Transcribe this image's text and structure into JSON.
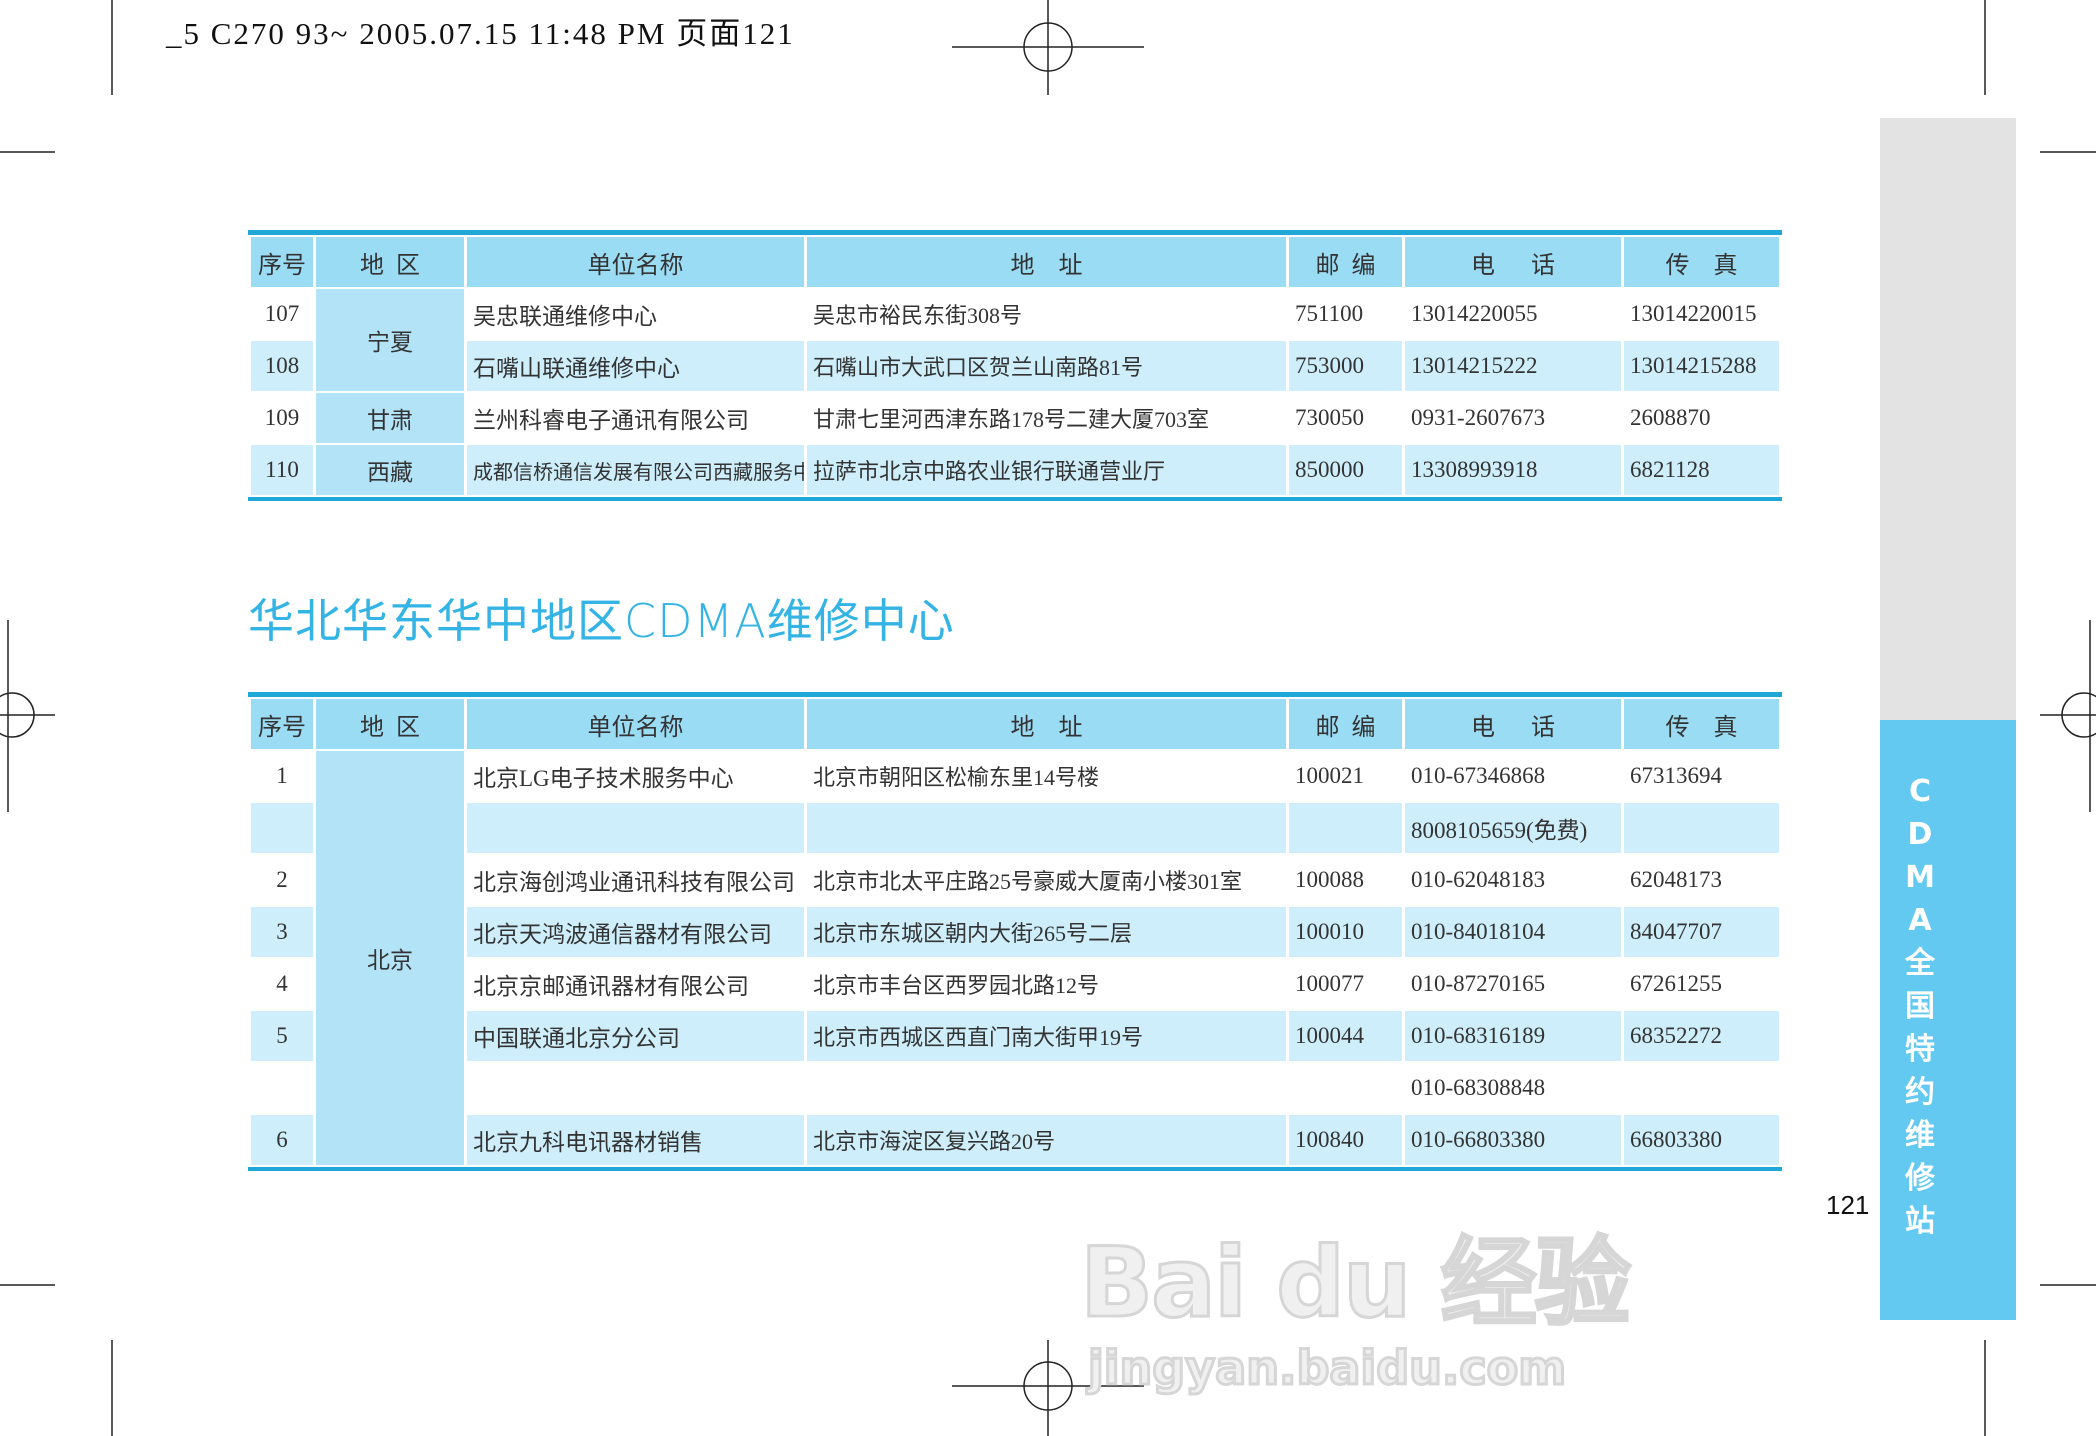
{
  "slug": "_5 C270 93~  2005.07.15 11:48 PM 页面121",
  "colors": {
    "accent": "#1fa7d8",
    "header_bg": "#9bdcf5",
    "region_bg": "#b3e3f7",
    "row_shade": "#cdeefa",
    "sidebar_blue": "#63c9f1",
    "sidebar_gray": "#e3e3e3",
    "heading": "#33b4e4"
  },
  "headers": [
    "序号",
    "地  区",
    "单位名称",
    "地    址",
    "邮  编",
    "电      话",
    "传    真"
  ],
  "table1": {
    "groups": [
      {
        "region": "宁夏",
        "rows": [
          {
            "no": "107",
            "name": "吴忠联通维修中心",
            "address": "吴忠市裕民东街308号",
            "zip": "751100",
            "phone": "13014220055",
            "fax": "13014220015"
          },
          {
            "no": "108",
            "name": "石嘴山联通维修中心",
            "address": "石嘴山市大武口区贺兰山南路81号",
            "zip": "753000",
            "phone": "13014215222",
            "fax": "13014215288"
          }
        ]
      },
      {
        "region": "甘肃",
        "rows": [
          {
            "no": "109",
            "name": "兰州科睿电子通讯有限公司",
            "address": "甘肃七里河西津东路178号二建大厦703室",
            "zip": "730050",
            "phone": "0931-2607673",
            "fax": "2608870"
          }
        ]
      },
      {
        "region": "西藏",
        "rows": [
          {
            "no": "110",
            "name": "成都信桥通信发展有限公司西藏服务中心",
            "address": "拉萨市北京中路农业银行联通营业厅",
            "zip": "850000",
            "phone": "13308993918",
            "fax": "6821128"
          }
        ]
      }
    ]
  },
  "section_title": "华北华东华中地区CDMA维修中心",
  "table2": {
    "groups": [
      {
        "region": "北京",
        "rows": [
          {
            "no": "1",
            "name": "北京LG电子技术服务中心",
            "address": "北京市朝阳区松榆东里14号楼",
            "zip": "100021",
            "phone": "010-67346868",
            "fax": "67313694"
          },
          {
            "no": "",
            "name": "",
            "address": "",
            "zip": "",
            "phone": "8008105659(免费)",
            "fax": ""
          },
          {
            "no": "2",
            "name": "北京海创鸿业通讯科技有限公司",
            "address": "北京市北太平庄路25号豪威大厦南小楼301室",
            "zip": "100088",
            "phone": "010-62048183",
            "fax": "62048173"
          },
          {
            "no": "3",
            "name": "北京天鸿波通信器材有限公司",
            "address": "北京市东城区朝内大街265号二层",
            "zip": "100010",
            "phone": "010-84018104",
            "fax": "84047707"
          },
          {
            "no": "4",
            "name": "北京京邮通讯器材有限公司",
            "address": "北京市丰台区西罗园北路12号",
            "zip": "100077",
            "phone": "010-87270165",
            "fax": "67261255"
          },
          {
            "no": "5",
            "name": "中国联通北京分公司",
            "address": "北京市西城区西直门南大街甲19号",
            "zip": "100044",
            "phone": "010-68316189",
            "fax": "68352272"
          },
          {
            "no": "",
            "name": "",
            "address": "",
            "zip": "",
            "phone": "010-68308848",
            "fax": ""
          },
          {
            "no": "6",
            "name": "北京九科电讯器材销售",
            "address": "北京市海淀区复兴路20号",
            "zip": "100840",
            "phone": "010-66803380",
            "fax": "66803380"
          }
        ]
      }
    ]
  },
  "sidebar": {
    "chars": [
      "C",
      "D",
      "M",
      "A",
      "全",
      "国",
      "特",
      "约",
      "维",
      "修",
      "站"
    ]
  },
  "page_number": "121",
  "watermark": {
    "logo": "Bai du 经验",
    "url": "jingyan.baidu.com"
  }
}
